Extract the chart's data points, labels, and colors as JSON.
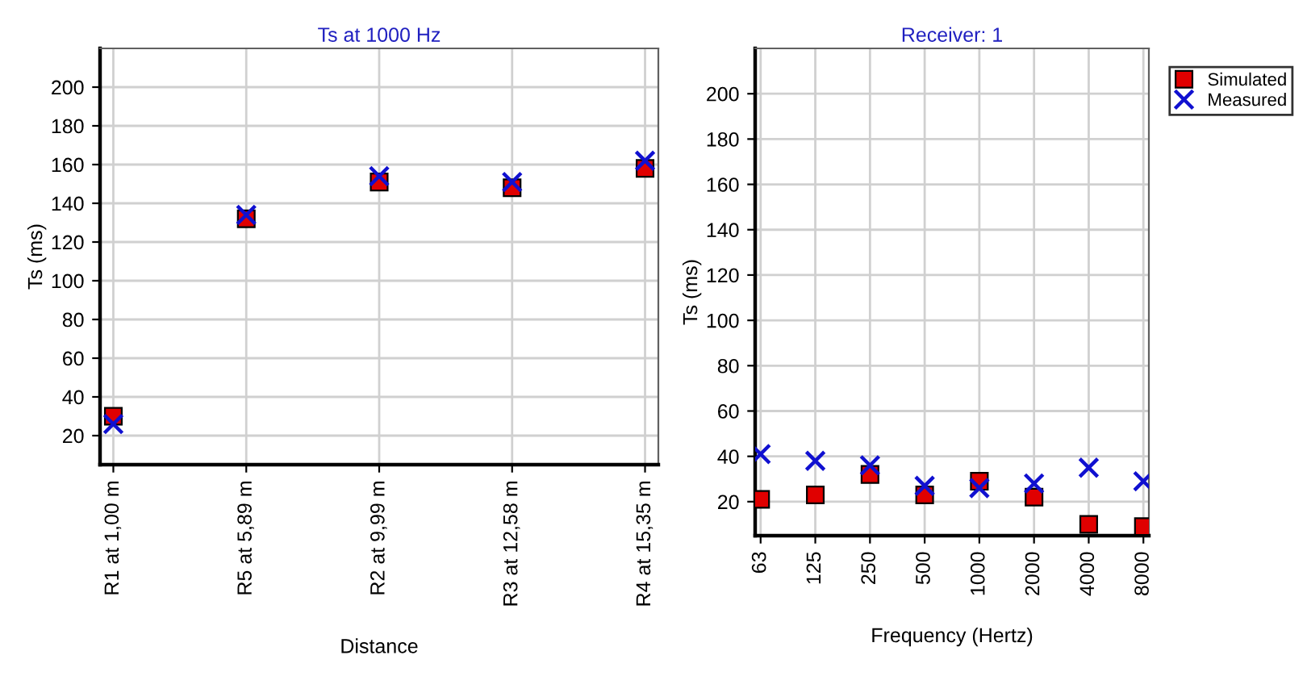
{
  "chart_data": [
    {
      "type": "scatter",
      "title": "Ts at 1000 Hz",
      "xlabel": "Distance",
      "ylabel": "Ts (ms)",
      "categories": [
        "R1 at 1,00 m",
        "R5 at 5,89 m",
        "R2 at 9,99 m",
        "R3 at 12,58 m",
        "R4 at 15,35 m"
      ],
      "series": [
        {
          "color": "#e00000",
          "marker": "square",
          "values": [
            30,
            132,
            151,
            148,
            158
          ]
        },
        {
          "color": "#1010d0",
          "marker": "cross",
          "values": [
            26,
            134,
            154,
            151,
            162
          ]
        }
      ],
      "ylim": [
        5,
        220
      ],
      "yticks": [
        20,
        40,
        60,
        80,
        100,
        120,
        140,
        160,
        180,
        200
      ],
      "grid": true,
      "legend": false
    },
    {
      "type": "scatter",
      "title": "Receiver: 1",
      "xlabel": "Frequency (Hertz)",
      "ylabel": "Ts (ms)",
      "categories": [
        "63",
        "125",
        "250",
        "500",
        "1000",
        "2000",
        "4000",
        "8000"
      ],
      "series": [
        {
          "name": "Simulated",
          "color": "#e00000",
          "marker": "square",
          "values": [
            21,
            23,
            32,
            23,
            29,
            22,
            10,
            9
          ]
        },
        {
          "name": "Measured",
          "color": "#1010d0",
          "marker": "cross",
          "values": [
            41,
            38,
            36,
            27,
            26,
            28,
            35,
            29
          ]
        }
      ],
      "ylim": [
        5,
        220
      ],
      "yticks": [
        20,
        40,
        60,
        80,
        100,
        120,
        140,
        160,
        180,
        200
      ],
      "grid": true,
      "legend": "right"
    }
  ]
}
